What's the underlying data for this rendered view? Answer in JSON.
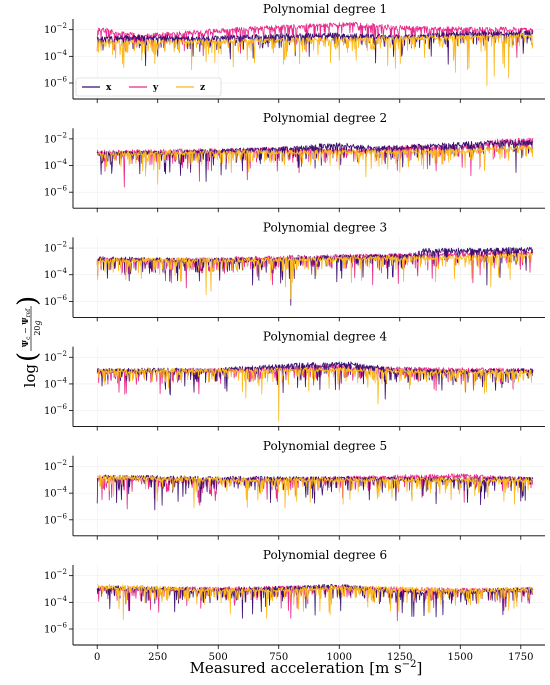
{
  "chart_data": {
    "type": "line",
    "scale_y": "log",
    "xlabel_text": "Measured acceleration",
    "xlabel_unit": "[m s",
    "xlabel_unit_exp": "−2",
    "xlabel_unit_close": "]",
    "ylabel_log": "log",
    "ylabel_num1": "Ψ",
    "ylabel_num1_sub": "c",
    "ylabel_minus": " − ",
    "ylabel_num2": "Ψ",
    "ylabel_num2_sub": "ref",
    "ylabel_den": "20",
    "ylabel_den_g": "g",
    "xlim": [
      -100,
      1850
    ],
    "xticks": [
      0,
      250,
      500,
      750,
      1000,
      1250,
      1500,
      1750
    ],
    "xtick_labels": [
      "0",
      "250",
      "500",
      "750",
      "1000",
      "1250",
      "1500",
      "1750"
    ],
    "ylim_exp": [
      -7.2,
      -1.2
    ],
    "yticks_exp": [
      -2,
      -4,
      -6
    ],
    "ytick_base": "10",
    "ytick_exp_labels": [
      "−2",
      "−4",
      "−6"
    ],
    "n_samples": 1800,
    "grid": true,
    "legend_position": "lower-left (first panel)",
    "series_colors": {
      "x": "#3b0f70",
      "y": "#e7298a",
      "z": "#fbb91f"
    },
    "series": [
      {
        "name": "x"
      },
      {
        "name": "y"
      },
      {
        "name": "z"
      }
    ],
    "panels": [
      {
        "title": "Polynomial degree 1",
        "legend": true,
        "levels": {
          "x": [
            [
              0,
              -2.7
            ],
            [
              150,
              -2.55
            ],
            [
              400,
              -2.65
            ],
            [
              600,
              -2.55
            ],
            [
              800,
              -2.45
            ],
            [
              1000,
              -2.4
            ],
            [
              1250,
              -2.55
            ],
            [
              1500,
              -2.3
            ],
            [
              1800,
              -2.25
            ]
          ],
          "y": [
            [
              0,
              -1.95
            ],
            [
              180,
              -2.5
            ],
            [
              400,
              -2.2
            ],
            [
              700,
              -1.85
            ],
            [
              1050,
              -1.6
            ],
            [
              1300,
              -1.9
            ],
            [
              1500,
              -1.95
            ],
            [
              1800,
              -2.0
            ]
          ],
          "z": [
            [
              0,
              -2.95
            ],
            [
              300,
              -2.9
            ],
            [
              600,
              -2.85
            ],
            [
              900,
              -2.75
            ],
            [
              1200,
              -2.65
            ],
            [
              1500,
              -2.55
            ],
            [
              1800,
              -2.45
            ]
          ]
        },
        "spikes": {
          "x": [
            [
              200,
              -4.7
            ],
            [
              550,
              -4.2
            ],
            [
              1150,
              -4.5
            ],
            [
              1380,
              -4.0
            ],
            [
              1450,
              -4.6
            ]
          ],
          "y": [],
          "z": [
            [
              390,
              -5.0
            ],
            [
              450,
              -4.4
            ],
            [
              1000,
              -4.3
            ],
            [
              1070,
              -4.3
            ],
            [
              1200,
              -4.7
            ],
            [
              1480,
              -5.2
            ],
            [
              1530,
              -5.0
            ],
            [
              1610,
              -6.2
            ],
            [
              1640,
              -5.5
            ],
            [
              1700,
              -5.6
            ]
          ]
        }
      },
      {
        "title": "Polynomial degree 2",
        "legend": false,
        "levels": {
          "x": [
            [
              0,
              -3.1
            ],
            [
              400,
              -3.0
            ],
            [
              800,
              -2.7
            ],
            [
              1000,
              -2.45
            ],
            [
              1150,
              -2.7
            ],
            [
              1400,
              -2.5
            ],
            [
              1600,
              -2.3
            ],
            [
              1800,
              -2.25
            ]
          ],
          "y": [
            [
              0,
              -3.0
            ],
            [
              400,
              -2.9
            ],
            [
              900,
              -2.75
            ],
            [
              1100,
              -2.9
            ],
            [
              1300,
              -2.6
            ],
            [
              1500,
              -2.7
            ],
            [
              1650,
              -2.2
            ],
            [
              1800,
              -2.05
            ]
          ],
          "z": [
            [
              0,
              -3.1
            ],
            [
              500,
              -3.0
            ],
            [
              1000,
              -3.0
            ],
            [
              1500,
              -2.9
            ],
            [
              1800,
              -2.6
            ]
          ]
        },
        "spikes": {
          "x": [
            [
              60,
              -4.6
            ],
            [
              300,
              -4.5
            ],
            [
              450,
              -5.2
            ],
            [
              600,
              -4.4
            ],
            [
              900,
              -4.2
            ]
          ],
          "y": [],
          "z": [
            [
              200,
              -4.8
            ],
            [
              1000,
              -4.3
            ],
            [
              1250,
              -4.5
            ],
            [
              1600,
              -4.4
            ]
          ]
        }
      },
      {
        "title": "Polynomial degree 3",
        "legend": false,
        "levels": {
          "x": [
            [
              0,
              -2.8
            ],
            [
              300,
              -2.9
            ],
            [
              600,
              -2.9
            ],
            [
              1000,
              -2.7
            ],
            [
              1300,
              -2.6
            ],
            [
              1350,
              -2.2
            ],
            [
              1800,
              -2.1
            ]
          ],
          "y": [
            [
              0,
              -2.9
            ],
            [
              400,
              -2.9
            ],
            [
              800,
              -2.7
            ],
            [
              1100,
              -2.6
            ],
            [
              1300,
              -2.5
            ],
            [
              1800,
              -2.3
            ]
          ],
          "z": [
            [
              0,
              -2.9
            ],
            [
              500,
              -2.9
            ],
            [
              1000,
              -2.8
            ],
            [
              1500,
              -2.7
            ],
            [
              1800,
              -2.5
            ]
          ]
        },
        "spikes": {
          "x": [
            [
              300,
              -4.5
            ],
            [
              800,
              -6.3
            ],
            [
              900,
              -4.3
            ],
            [
              1200,
              -4.3
            ]
          ],
          "y": [],
          "z": [
            [
              100,
              -4.0
            ],
            [
              450,
              -5.5
            ],
            [
              800,
              -5.8
            ],
            [
              1050,
              -4.6
            ]
          ]
        }
      },
      {
        "title": "Polynomial degree 4",
        "legend": false,
        "levels": {
          "x": [
            [
              0,
              -3.0
            ],
            [
              500,
              -2.95
            ],
            [
              800,
              -2.6
            ],
            [
              1050,
              -2.5
            ],
            [
              1250,
              -3.0
            ],
            [
              1500,
              -3.1
            ],
            [
              1800,
              -3.0
            ]
          ],
          "y": [
            [
              0,
              -3.1
            ],
            [
              500,
              -3.0
            ],
            [
              1000,
              -2.7
            ],
            [
              1250,
              -2.9
            ],
            [
              1800,
              -3.0
            ]
          ],
          "z": [
            [
              0,
              -3.0
            ],
            [
              600,
              -3.0
            ],
            [
              1000,
              -2.9
            ],
            [
              1400,
              -3.1
            ],
            [
              1800,
              -3.1
            ]
          ]
        },
        "spikes": {
          "x": [
            [
              300,
              -4.7
            ],
            [
              1100,
              -4.0
            ],
            [
              1600,
              -4.3
            ]
          ],
          "y": [
            [
              120,
              -4.7
            ],
            [
              400,
              -4.5
            ],
            [
              1400,
              -4.5
            ]
          ],
          "z": [
            [
              600,
              -4.6
            ],
            [
              750,
              -6.8
            ],
            [
              1160,
              -5.5
            ],
            [
              1600,
              -4.7
            ]
          ]
        }
      },
      {
        "title": "Polynomial degree 5",
        "legend": false,
        "levels": {
          "x": [
            [
              0,
              -2.8
            ],
            [
              500,
              -2.9
            ],
            [
              1000,
              -2.9
            ],
            [
              1500,
              -3.0
            ],
            [
              1800,
              -2.9
            ]
          ],
          "y": [
            [
              0,
              -2.9
            ],
            [
              500,
              -3.1
            ],
            [
              1000,
              -2.9
            ],
            [
              1500,
              -2.7
            ],
            [
              1800,
              -3.0
            ]
          ],
          "z": [
            [
              0,
              -2.8
            ],
            [
              600,
              -3.0
            ],
            [
              1200,
              -3.0
            ],
            [
              1800,
              -3.0
            ]
          ]
        },
        "spikes": {
          "x": [
            [
              100,
              -4.5
            ],
            [
              1300,
              -4.5
            ],
            [
              1400,
              -4.8
            ],
            [
              1750,
              -4.6
            ]
          ],
          "y": [],
          "z": [
            [
              400,
              -5.1
            ],
            [
              880,
              -4.7
            ],
            [
              1300,
              -4.6
            ]
          ]
        }
      },
      {
        "title": "Polynomial degree 6",
        "legend": false,
        "levels": {
          "x": [
            [
              0,
              -2.9
            ],
            [
              500,
              -3.1
            ],
            [
              1000,
              -2.8
            ],
            [
              1200,
              -3.1
            ],
            [
              1400,
              -3.3
            ],
            [
              1800,
              -3.0
            ]
          ],
          "y": [
            [
              0,
              -3.0
            ],
            [
              500,
              -3.0
            ],
            [
              1000,
              -2.9
            ],
            [
              1500,
              -3.1
            ],
            [
              1800,
              -3.1
            ]
          ],
          "z": [
            [
              0,
              -2.8
            ],
            [
              600,
              -3.1
            ],
            [
              1000,
              -2.9
            ],
            [
              1500,
              -3.1
            ],
            [
              1800,
              -3.0
            ]
          ]
        },
        "spikes": {
          "x": [
            [
              600,
              -5.2
            ],
            [
              1350,
              -5.0
            ],
            [
              1400,
              -5.1
            ]
          ],
          "y": [
            [
              800,
              -5.2
            ]
          ],
          "z": [
            [
              550,
              -4.9
            ],
            [
              700,
              -5.2
            ],
            [
              1700,
              -4.6
            ]
          ]
        }
      }
    ]
  }
}
